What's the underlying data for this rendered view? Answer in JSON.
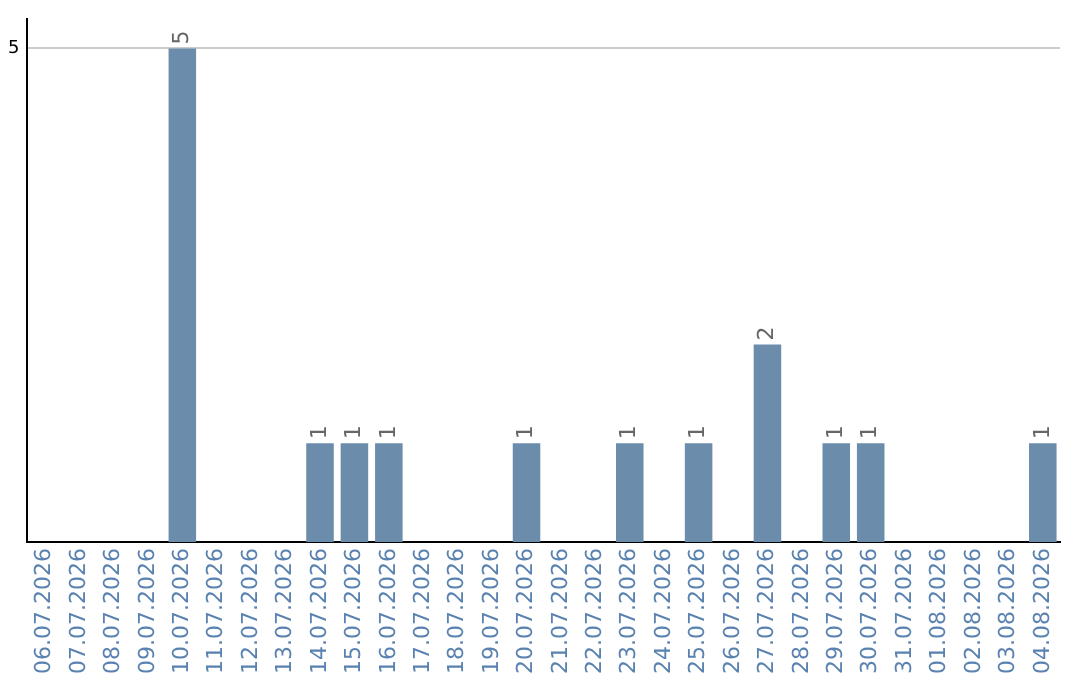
{
  "chart_data": {
    "type": "bar",
    "categories": [
      "06.07.2026",
      "07.07.2026",
      "08.07.2026",
      "09.07.2026",
      "10.07.2026",
      "11.07.2026",
      "12.07.2026",
      "13.07.2026",
      "14.07.2026",
      "15.07.2026",
      "16.07.2026",
      "17.07.2026",
      "18.07.2026",
      "19.07.2026",
      "20.07.2026",
      "21.07.2026",
      "22.07.2026",
      "23.07.2026",
      "24.07.2026",
      "25.07.2026",
      "26.07.2026",
      "27.07.2026",
      "28.07.2026",
      "29.07.2026",
      "30.07.2026",
      "31.07.2026",
      "01.08.2026",
      "02.08.2026",
      "03.08.2026",
      "04.08.2026"
    ],
    "values": [
      0,
      0,
      0,
      0,
      5,
      0,
      0,
      0,
      1,
      1,
      1,
      0,
      0,
      0,
      1,
      0,
      0,
      1,
      0,
      1,
      0,
      2,
      0,
      1,
      1,
      0,
      0,
      0,
      0,
      1
    ],
    "value_labels": [
      null,
      null,
      null,
      null,
      "5",
      null,
      null,
      null,
      "1",
      "1",
      "1",
      null,
      null,
      null,
      "1",
      null,
      null,
      "1",
      null,
      "1",
      null,
      "2",
      null,
      "1",
      "1",
      null,
      null,
      null,
      null,
      "1"
    ],
    "color": "#6b8cab",
    "ylim": [
      0,
      5.3
    ],
    "yticks": [
      5
    ],
    "grid": "y",
    "legend": false
  }
}
